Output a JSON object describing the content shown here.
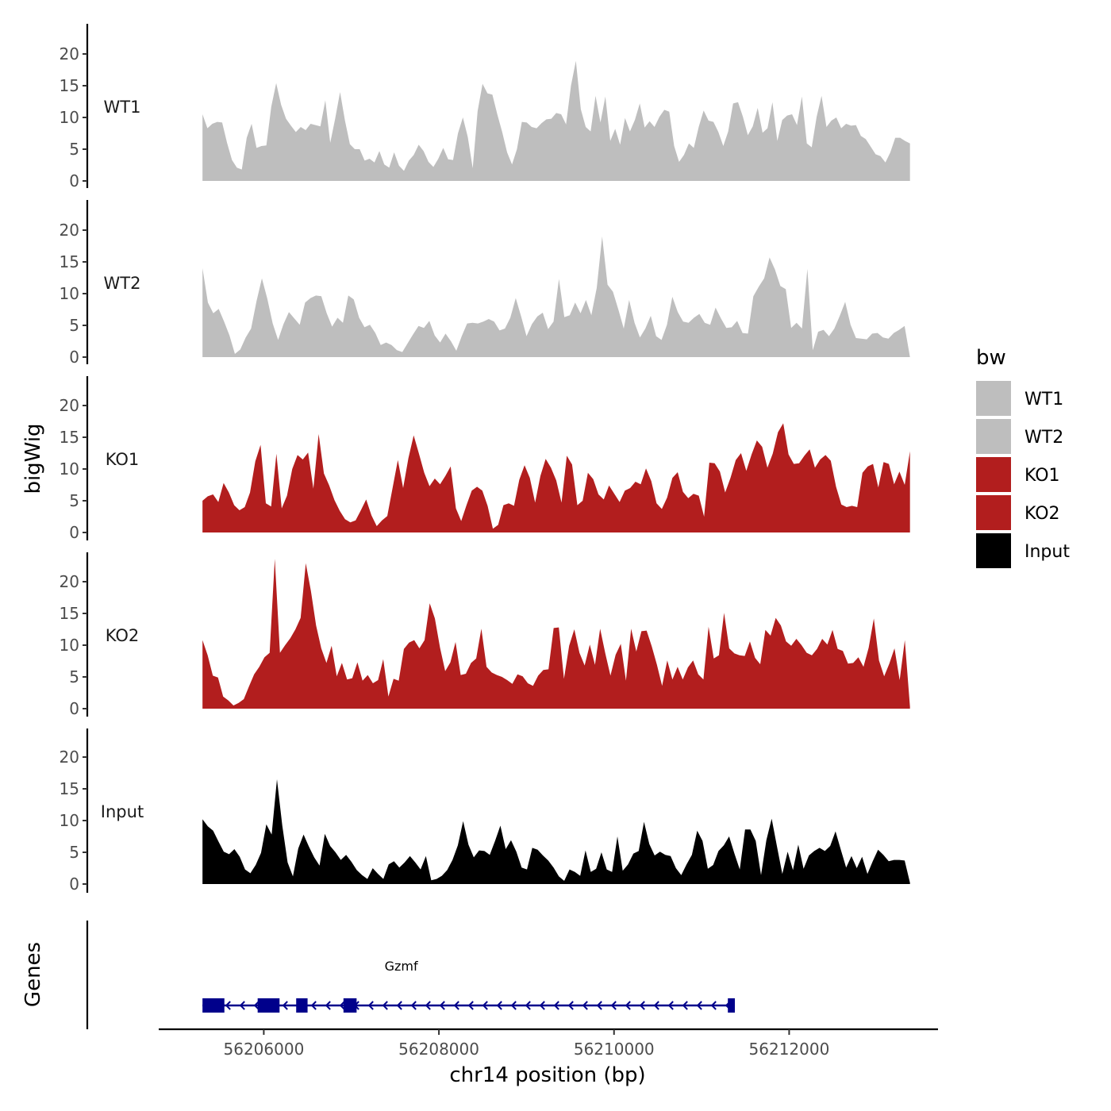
{
  "chart_data": {
    "type": "area",
    "chromosome": "chr14",
    "xlabel": "chr14 position (bp)",
    "ylabel_tracks": "bigWig",
    "ylabel_genes": "Genes",
    "xlim": [
      56204800,
      56213700
    ],
    "x_start": 56205300,
    "x_end": 56213380,
    "ylim": [
      0,
      25
    ],
    "y_ticks": [
      0,
      5,
      10,
      15,
      20
    ],
    "x_ticks": [
      56206000,
      56208000,
      56210000,
      56212000
    ],
    "x_tick_labels": [
      "56206000",
      "56208000",
      "56210000",
      "56212000"
    ],
    "tracks": [
      {
        "name": "WT1",
        "label": "WT1",
        "color": "#bebebe",
        "values": [
          10.5,
          8.3,
          9,
          9.3,
          9.2,
          6,
          3.3,
          2.1,
          1.8,
          6.8,
          9,
          5.2,
          5.5,
          5.6,
          11.7,
          15.4,
          12,
          9.8,
          8.7,
          7.7,
          8.5,
          8,
          9,
          8.8,
          8.6,
          12.7,
          6,
          9.8,
          14,
          9.5,
          5.8,
          5,
          5,
          3.2,
          3.5,
          2.9,
          4.7,
          2.6,
          2.1,
          4.5,
          2.4,
          1.6,
          3.2,
          4.1,
          5.7,
          4.7,
          3,
          2.2,
          3.5,
          5.2,
          3.4,
          3.3,
          7.5,
          10,
          6.9,
          2,
          11,
          15.3,
          13.8,
          13.6,
          10.5,
          7.7,
          4.5,
          2.6,
          5,
          9.3,
          9.2,
          8.5,
          8.3,
          9.1,
          9.7,
          9.8,
          10.7,
          10.5,
          8.9,
          15,
          18.9,
          11.3,
          8.5,
          7.8,
          13.4,
          9.2,
          13.3,
          6.3,
          8.2,
          5.7,
          9.9,
          7.8,
          9.6,
          12.2,
          8.4,
          9.4,
          8.5,
          10.1,
          11.2,
          10.9,
          5.5,
          3,
          4.1,
          5.9,
          5.2,
          8.5,
          11.1,
          9.5,
          9.3,
          7.7,
          5.5,
          7.8,
          12.2,
          12.4,
          10.1,
          7.2,
          8.6,
          11.5,
          7.6,
          8.3,
          12.4,
          6.3,
          9.6,
          10.3,
          10.5,
          8.8,
          13.3,
          5.9,
          5.3,
          10.1,
          13.4,
          8.5,
          9.5,
          10,
          8.3,
          9,
          8.7,
          8.8,
          7.1,
          6.6,
          5.4,
          4.2,
          3.9,
          2.9,
          4.5,
          6.8,
          6.8,
          6.3,
          5.9
        ]
      },
      {
        "name": "WT2",
        "label": "WT2",
        "color": "#bebebe",
        "values": [
          14,
          8.6,
          6.9,
          7.6,
          5.6,
          3.4,
          0.5,
          1.2,
          3.1,
          4.5,
          8.8,
          12.4,
          9.2,
          5.3,
          2.7,
          5.2,
          7.1,
          6.1,
          5.1,
          8.6,
          9.3,
          9.7,
          9.6,
          6.9,
          4.8,
          6.2,
          5.4,
          9.7,
          9.1,
          6.2,
          4.7,
          5.1,
          3.8,
          1.9,
          2.3,
          1.9,
          1.1,
          0.8,
          2.2,
          3.6,
          4.9,
          4.6,
          5.7,
          3.4,
          2.3,
          3.7,
          2.5,
          1,
          3.3,
          5.3,
          5.4,
          5.3,
          5.6,
          6,
          5.6,
          4.2,
          4.5,
          6.2,
          9.3,
          6.4,
          3.3,
          5.2,
          6.4,
          7,
          4.4,
          5.6,
          12.3,
          6.3,
          6.6,
          8.6,
          6.9,
          9,
          6.6,
          10.9,
          19,
          11.4,
          10.3,
          7.5,
          4.5,
          9,
          5.4,
          3.1,
          4.5,
          6.5,
          3.3,
          2.7,
          5.1,
          9.5,
          7.1,
          5.6,
          5.4,
          6.2,
          6.8,
          5.4,
          5.1,
          7.8,
          6.1,
          4.6,
          4.7,
          5.7,
          3.8,
          3.7,
          9.6,
          11.1,
          12.4,
          15.7,
          13.8,
          11.2,
          10.7,
          4.6,
          5.4,
          4.5,
          13.9,
          1.1,
          4,
          4.3,
          3.3,
          4.5,
          6.5,
          8.7,
          5.1,
          3,
          2.9,
          2.8,
          3.7,
          3.8,
          3.1,
          2.9,
          3.8,
          4.3,
          4.9,
          0
        ]
      },
      {
        "name": "KO1",
        "label": "KO1",
        "color": "#b21e1e",
        "values": [
          5,
          5.7,
          6,
          4.8,
          7.8,
          6.3,
          4.3,
          3.5,
          4,
          6.3,
          11.2,
          13.8,
          4.6,
          4.1,
          12.4,
          3.8,
          5.8,
          10,
          12.2,
          11.5,
          12.6,
          6.9,
          15.5,
          9.3,
          7.4,
          5.1,
          3.4,
          2.1,
          1.6,
          1.9,
          3.5,
          5.2,
          2.7,
          1,
          1.9,
          2.6,
          7,
          11.4,
          7,
          11.7,
          15.3,
          12.4,
          9.4,
          7.3,
          8.5,
          7.6,
          8.9,
          10.4,
          3.8,
          1.8,
          4.3,
          6.6,
          7.2,
          6.6,
          4.2,
          0.6,
          1.2,
          4.3,
          4.6,
          4.2,
          8.3,
          10.6,
          8.6,
          4.7,
          8.9,
          11.6,
          10.2,
          8.2,
          4.7,
          12.1,
          10.7,
          4.3,
          5,
          9.4,
          8.4,
          6,
          5.2,
          7.4,
          6.1,
          4.8,
          6.6,
          7,
          8,
          7.6,
          10.1,
          8.1,
          4.6,
          3.7,
          5.5,
          8.6,
          9.5,
          6.4,
          5.4,
          6.1,
          5.8,
          2.5,
          11,
          10.9,
          9.6,
          6.3,
          8.6,
          11.4,
          12.5,
          9.7,
          12.3,
          14.5,
          13.5,
          10.2,
          12.4,
          15.8,
          17.2,
          12.3,
          10.8,
          10.9,
          12.1,
          13.1,
          10.2,
          11.5,
          12.2,
          11.3,
          7.2,
          4.4,
          4,
          4.2,
          4,
          9.4,
          10.4,
          10.8,
          7.1,
          11.1,
          10.8,
          7.6,
          9.6,
          7.5,
          12.8
        ]
      },
      {
        "name": "KO2",
        "label": "KO2",
        "color": "#b21e1e",
        "values": [
          10.8,
          8.4,
          5.2,
          4.9,
          1.9,
          1.3,
          0.5,
          0.9,
          1.5,
          3.5,
          5.4,
          6.6,
          8.1,
          8.8,
          23.6,
          8.8,
          10,
          11.1,
          12.5,
          14.3,
          22.9,
          18.5,
          13.1,
          9.5,
          7.2,
          9.9,
          5.1,
          7.2,
          4.6,
          4.8,
          7.3,
          4.4,
          5.3,
          4,
          4.5,
          7.8,
          1.9,
          4.7,
          4.4,
          9.4,
          10.4,
          10.8,
          9.5,
          10.8,
          16.6,
          14.2,
          9.6,
          5.9,
          7.3,
          10.5,
          5.3,
          5.5,
          7.2,
          7.9,
          12.6,
          6.6,
          5.7,
          5.3,
          5,
          4.5,
          3.9,
          5.4,
          5.1,
          4,
          3.6,
          5.2,
          6.1,
          6.2,
          12.7,
          12.8,
          4.7,
          9.9,
          12.5,
          8.8,
          6.8,
          10.1,
          6.9,
          12.6,
          8.7,
          5.2,
          8.5,
          10.2,
          4.4,
          12.6,
          9,
          12.2,
          12.3,
          9.8,
          6.9,
          3.6,
          7.6,
          4.6,
          6.6,
          4.6,
          6.5,
          7.6,
          5.4,
          4.6,
          12.9,
          7.9,
          8.4,
          15.1,
          9.5,
          8.7,
          8.4,
          8.3,
          10.6,
          8,
          7,
          12.4,
          11.5,
          14.3,
          13.1,
          10.6,
          9.9,
          11,
          10,
          8.8,
          8.4,
          9.4,
          11,
          10.1,
          12.4,
          9.4,
          9.1,
          7.1,
          7.2,
          8.1,
          6.6,
          9.6,
          14.2,
          7.6,
          5.1,
          7.1,
          9.5,
          4.5,
          10.8,
          0.3
        ]
      },
      {
        "name": "Input",
        "label": "Input",
        "color": "#000000",
        "values": [
          10.2,
          9.1,
          8.4,
          6.7,
          5.1,
          4.7,
          5.5,
          4.3,
          2.3,
          1.7,
          3,
          4.9,
          9.4,
          7.8,
          16.5,
          9.2,
          3.4,
          1.2,
          5.6,
          7.8,
          5.9,
          4.2,
          2.9,
          7.9,
          6,
          5,
          3.8,
          4.6,
          3.5,
          2.2,
          1.4,
          0.8,
          2.5,
          1.6,
          0.8,
          3.1,
          3.6,
          2.6,
          3.4,
          4.4,
          3.4,
          2.3,
          4.4,
          0.6,
          0.8,
          1.3,
          2.2,
          3.8,
          6.1,
          9.9,
          6.2,
          4.2,
          5.3,
          5.2,
          4.6,
          6.8,
          9.2,
          5.5,
          6.9,
          5.1,
          2.6,
          2.3,
          5.7,
          5.4,
          4.5,
          3.7,
          2.6,
          1.2,
          0.5,
          2.3,
          1.9,
          1.3,
          5.3,
          1.9,
          2.4,
          5,
          2.3,
          1.9,
          7.5,
          2.1,
          3.1,
          4.8,
          5.2,
          9.8,
          6.3,
          4.5,
          5.1,
          4.6,
          4.4,
          2.5,
          1.4,
          3.1,
          4.6,
          8.4,
          6.8,
          2.4,
          3,
          5.2,
          6.1,
          7.5,
          4.8,
          2.3,
          8.6,
          8.6,
          6.8,
          1.4,
          6.9,
          10.3,
          5.9,
          1.6,
          5.1,
          2.2,
          6.2,
          2.4,
          4.5,
          5.2,
          5.7,
          5.2,
          6,
          8.3,
          5.4,
          2.6,
          4.4,
          2.5,
          4.3,
          1.6,
          3.6,
          5.4,
          4.6,
          3.6,
          3.8,
          3.8,
          3.7,
          0.2
        ]
      }
    ],
    "legend": {
      "title": "bw",
      "position": "right",
      "entries": [
        {
          "label": "WT1",
          "color": "#bebebe"
        },
        {
          "label": "WT2",
          "color": "#bebebe"
        },
        {
          "label": "KO1",
          "color": "#b21e1e"
        },
        {
          "label": "KO2",
          "color": "#b21e1e"
        },
        {
          "label": "Input",
          "color": "#000000"
        }
      ]
    },
    "genes": [
      {
        "name": "Gzmf",
        "strand": "-",
        "start": 56205300,
        "end": 56211380,
        "color": "#00008b",
        "exons": [
          [
            56205300,
            56205550
          ],
          [
            56205930,
            56206180
          ],
          [
            56206370,
            56206500
          ],
          [
            56206910,
            56207060
          ],
          [
            56211300,
            56211380
          ]
        ]
      }
    ],
    "tick_color": "#4d4d4d"
  }
}
